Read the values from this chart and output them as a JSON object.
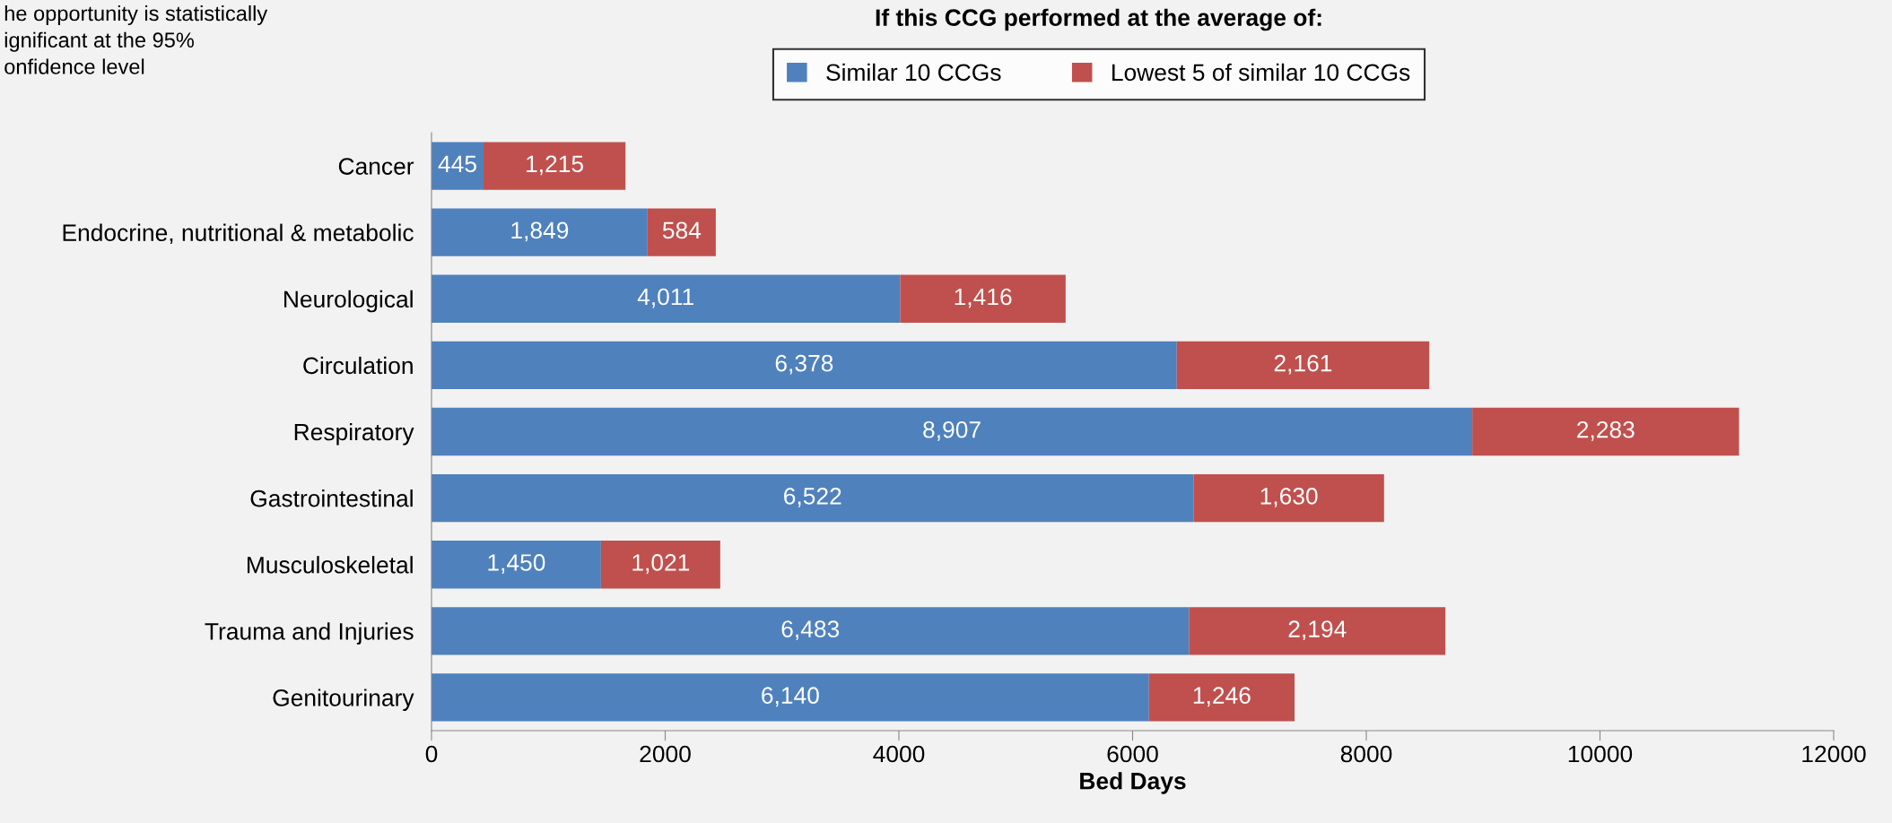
{
  "chart_data": {
    "type": "bar",
    "orientation": "horizontal",
    "stacked": true,
    "categories": [
      "Cancer",
      "Endocrine, nutritional & metabolic",
      "Neurological",
      "Circulation",
      "Respiratory",
      "Gastrointestinal",
      "Musculoskeletal",
      "Trauma and Injuries",
      "Genitourinary"
    ],
    "series": [
      {
        "name": "Similar 10 CCGs",
        "color": "#4f81bd",
        "values": [
          445,
          1849,
          4011,
          6378,
          8907,
          6522,
          1450,
          6483,
          6140
        ]
      },
      {
        "name": "Lowest 5 of similar 10 CCGs",
        "color": "#c0504d",
        "values": [
          1215,
          584,
          1416,
          2161,
          2283,
          1630,
          1021,
          2194,
          1246
        ]
      }
    ],
    "value_labels": [
      [
        "445",
        "1,849",
        "4,011",
        "6,378",
        "8,907",
        "6,522",
        "1,450",
        "6,483",
        "6,140"
      ],
      [
        "1,215",
        "584",
        "1,416",
        "2,161",
        "2,283",
        "1,630",
        "1,021",
        "2,194",
        "1,246"
      ]
    ],
    "xlabel": "Bed Days",
    "xlim": [
      0,
      12000
    ],
    "xticks": [
      0,
      2000,
      4000,
      6000,
      8000,
      10000,
      12000
    ],
    "legend": "top",
    "legend_title": "If this CCG performed at the average of:",
    "grid": false,
    "annotations": [
      "he opportunity is statistically\nignificant at the 95%\nonfidence level"
    ]
  }
}
